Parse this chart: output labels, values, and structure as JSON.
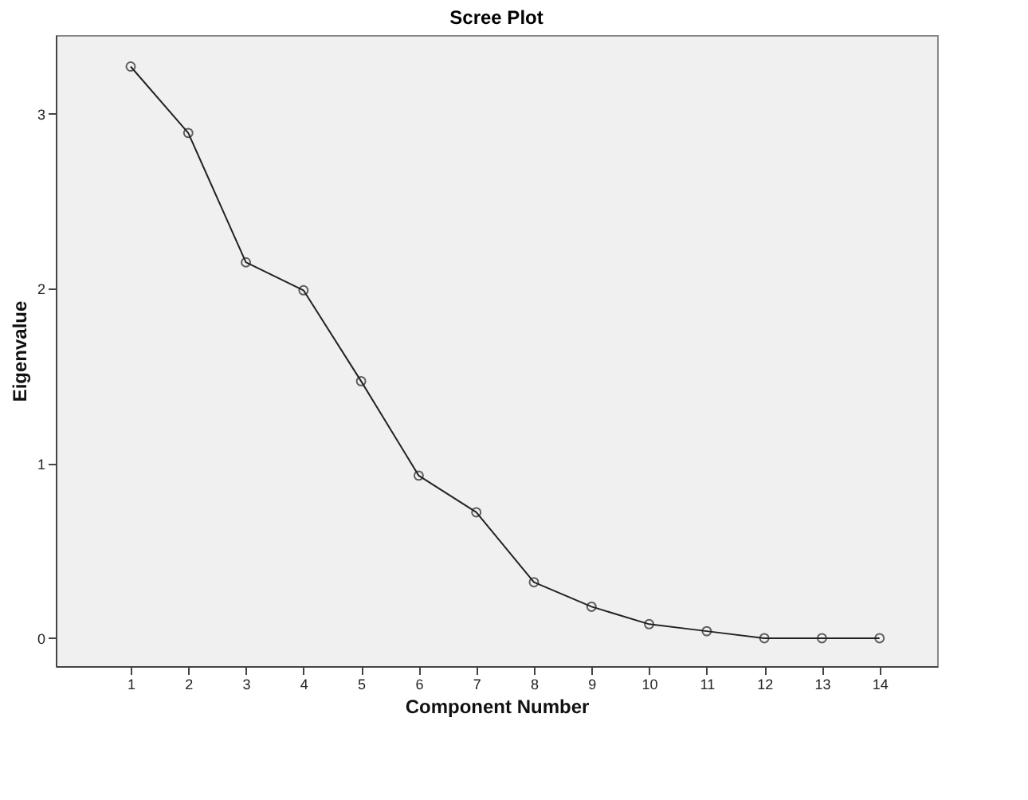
{
  "chart_data": {
    "type": "line",
    "title": "Scree Plot",
    "xlabel": "Component Number",
    "ylabel": "Eigenvalue",
    "x": [
      1,
      2,
      3,
      4,
      5,
      6,
      7,
      8,
      9,
      10,
      11,
      12,
      13,
      14
    ],
    "series": [
      {
        "color": "#222222",
        "values": [
          3.27,
          2.89,
          2.15,
          1.99,
          1.47,
          0.93,
          0.72,
          0.32,
          0.18,
          0.08,
          0.04,
          0.0,
          0.0,
          0.0
        ]
      }
    ],
    "xlim": [
      -0.3,
      15
    ],
    "xticks": [
      1,
      2,
      3,
      4,
      5,
      6,
      7,
      8,
      9,
      10,
      11,
      12,
      13,
      14
    ],
    "ylim": [
      -0.16,
      3.45
    ],
    "yticks": [
      0,
      1,
      2,
      3
    ],
    "marker": "circle",
    "line_style": "solid",
    "grid": false
  }
}
